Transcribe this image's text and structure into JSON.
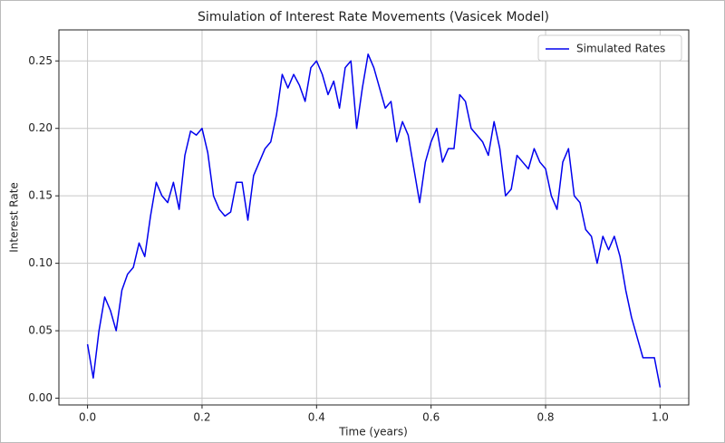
{
  "chart_data": {
    "type": "line",
    "title": "Simulation of Interest Rate Movements (Vasicek Model)",
    "x_label": "Time (years)",
    "y_label": "Interest Rate",
    "x": [
      0,
      0.01,
      0.02,
      0.03,
      0.04,
      0.05,
      0.06,
      0.07,
      0.08,
      0.09,
      0.1,
      0.11,
      0.12,
      0.13,
      0.14,
      0.15,
      0.16,
      0.17,
      0.18,
      0.19,
      0.2,
      0.21,
      0.22,
      0.23,
      0.24,
      0.25,
      0.26,
      0.27,
      0.28,
      0.29,
      0.3,
      0.31,
      0.32,
      0.33,
      0.34,
      0.35,
      0.36,
      0.37,
      0.38,
      0.39,
      0.4,
      0.41,
      0.42,
      0.43,
      0.44,
      0.45,
      0.46,
      0.47,
      0.48,
      0.49,
      0.5,
      0.51,
      0.52,
      0.53,
      0.54,
      0.55,
      0.56,
      0.57,
      0.58,
      0.59,
      0.6,
      0.61,
      0.62,
      0.63,
      0.64,
      0.65,
      0.66,
      0.67,
      0.68,
      0.69,
      0.7,
      0.71,
      0.72,
      0.73,
      0.74,
      0.75,
      0.76,
      0.77,
      0.78,
      0.79,
      0.8,
      0.81,
      0.82,
      0.83,
      0.84,
      0.85,
      0.86,
      0.87,
      0.88,
      0.89,
      0.9,
      0.91,
      0.92,
      0.93,
      0.94,
      0.95,
      0.96,
      0.97,
      0.98,
      0.99,
      1
    ],
    "series": [
      {
        "name": "Simulated Rates",
        "color": "#0000ee",
        "values": [
          0.04,
          0.015,
          0.05,
          0.075,
          0.065,
          0.05,
          0.08,
          0.092,
          0.097,
          0.115,
          0.105,
          0.135,
          0.16,
          0.15,
          0.145,
          0.16,
          0.14,
          0.18,
          0.198,
          0.195,
          0.2,
          0.182,
          0.15,
          0.14,
          0.135,
          0.138,
          0.16,
          0.16,
          0.132,
          0.165,
          0.175,
          0.185,
          0.19,
          0.21,
          0.24,
          0.23,
          0.24,
          0.232,
          0.22,
          0.245,
          0.25,
          0.24,
          0.225,
          0.235,
          0.215,
          0.245,
          0.25,
          0.2,
          0.23,
          0.255,
          0.245,
          0.23,
          0.215,
          0.22,
          0.19,
          0.205,
          0.195,
          0.17,
          0.145,
          0.175,
          0.19,
          0.2,
          0.175,
          0.185,
          0.185,
          0.225,
          0.22,
          0.2,
          0.195,
          0.19,
          0.18,
          0.205,
          0.185,
          0.15,
          0.155,
          0.18,
          0.175,
          0.17,
          0.185,
          0.175,
          0.17,
          0.15,
          0.14,
          0.175,
          0.185,
          0.15,
          0.145,
          0.125,
          0.12,
          0.1,
          0.12,
          0.11,
          0.12,
          0.105,
          0.08,
          0.06,
          0.045,
          0.03,
          0.03,
          0.03,
          0.008
        ]
      }
    ],
    "xlim": [
      -0.05,
      1.05
    ],
    "xticks": [
      {
        "value": 0,
        "label": "0.0"
      },
      0.2,
      0.4,
      0.6,
      0.8,
      {
        "value": 1,
        "label": "1.0"
      }
    ],
    "ylim": [
      -0.005,
      0.273
    ],
    "yticks": [
      {
        "value": 0,
        "label": "0.00"
      },
      0.05,
      {
        "value": 0.1,
        "label": "0.10"
      },
      0.15,
      {
        "value": 0.2,
        "label": "0.20"
      },
      0.25
    ],
    "grid": true,
    "legend": "upper right"
  }
}
